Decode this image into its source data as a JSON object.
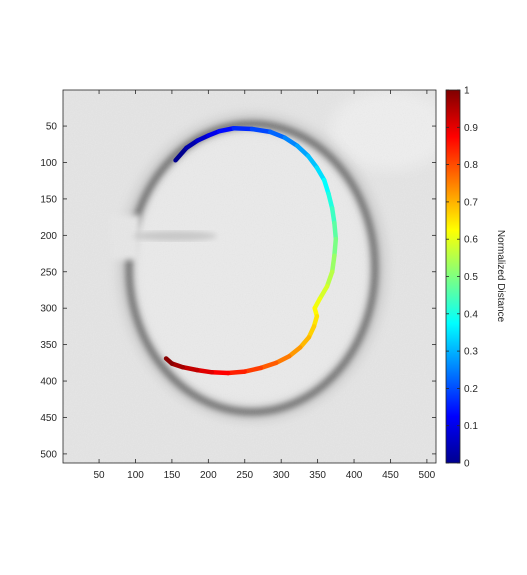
{
  "chart_data": {
    "type": "image-overlay-line",
    "title": "",
    "xlabel": "",
    "ylabel": "",
    "xlim": [
      0.5,
      512.5
    ],
    "ylim": [
      0.5,
      512.5
    ],
    "y_reversed": true,
    "x_ticks": [
      50,
      100,
      150,
      200,
      250,
      300,
      350,
      400,
      450,
      500
    ],
    "y_ticks": [
      50,
      100,
      150,
      200,
      250,
      300,
      350,
      400,
      450,
      500
    ],
    "colorbar": {
      "label": "Normalized Distance",
      "range": [
        0,
        1
      ],
      "ticks": [
        0,
        0.1,
        0.2,
        0.3,
        0.4,
        0.5,
        0.6,
        0.7,
        0.8,
        0.9,
        1
      ],
      "colormap": "jet"
    },
    "background": "grayscale image with dark elliptical ring outline",
    "path": {
      "name": "",
      "color_by": "Normalized Distance",
      "points": [
        [
          155,
          97,
          0.0
        ],
        [
          170,
          80,
          0.03
        ],
        [
          185,
          70,
          0.06
        ],
        [
          200,
          63,
          0.09
        ],
        [
          215,
          57,
          0.12
        ],
        [
          235,
          53,
          0.15
        ],
        [
          260,
          54,
          0.18
        ],
        [
          285,
          58,
          0.21
        ],
        [
          305,
          66,
          0.24
        ],
        [
          322,
          77,
          0.27
        ],
        [
          337,
          91,
          0.3
        ],
        [
          349,
          107,
          0.33
        ],
        [
          359,
          124,
          0.36
        ],
        [
          365,
          143,
          0.39
        ],
        [
          370,
          163,
          0.42
        ],
        [
          373,
          183,
          0.45
        ],
        [
          375,
          205,
          0.48
        ],
        [
          373,
          228,
          0.51
        ],
        [
          370,
          250,
          0.54
        ],
        [
          363,
          270,
          0.57
        ],
        [
          353,
          287,
          0.6
        ],
        [
          346,
          300,
          0.62
        ],
        [
          349,
          311,
          0.64
        ],
        [
          345,
          325,
          0.66
        ],
        [
          338,
          340,
          0.68
        ],
        [
          326,
          354,
          0.71
        ],
        [
          311,
          366,
          0.74
        ],
        [
          293,
          375,
          0.77
        ],
        [
          272,
          382,
          0.8
        ],
        [
          250,
          387,
          0.83
        ],
        [
          227,
          389,
          0.86
        ],
        [
          205,
          388,
          0.89
        ],
        [
          185,
          385,
          0.92
        ],
        [
          165,
          381,
          0.95
        ],
        [
          150,
          376,
          0.98
        ],
        [
          142,
          369,
          1.0
        ]
      ]
    }
  }
}
